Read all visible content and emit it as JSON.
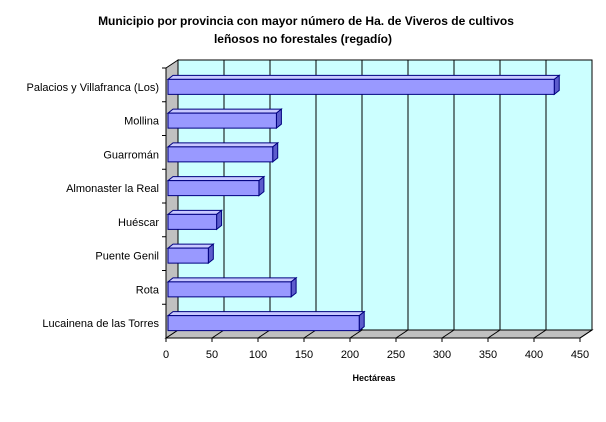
{
  "chart_data": {
    "type": "bar",
    "orientation": "horizontal",
    "title_line1": "Municipio por provincia con mayor número de Ha. de Viveros de cultivos",
    "title_line2": "leñosos no forestales (regadío)",
    "xlabel": "Hectáreas",
    "ylabel": "",
    "categories": [
      "Palacios y Villafranca (Los)",
      "Mollina",
      "Guarromán",
      "Almonaster la Real",
      "Huéscar",
      "Puente Genil",
      "Rota",
      "Lucainena de las Torres"
    ],
    "values": [
      422,
      120,
      116,
      101,
      55,
      46,
      136,
      210
    ],
    "xlim": [
      0,
      450
    ],
    "xticks": [
      "0",
      "50",
      "100",
      "150",
      "200",
      "250",
      "300",
      "350",
      "400",
      "450"
    ],
    "grid": true,
    "colors": {
      "plot_bg": "#ccffff",
      "bar_face": "#9999ff",
      "bar_top": "#c8c8ff",
      "bar_side": "#5c5ccc",
      "bar_edge": "#000080",
      "gridline": "#000000"
    }
  }
}
